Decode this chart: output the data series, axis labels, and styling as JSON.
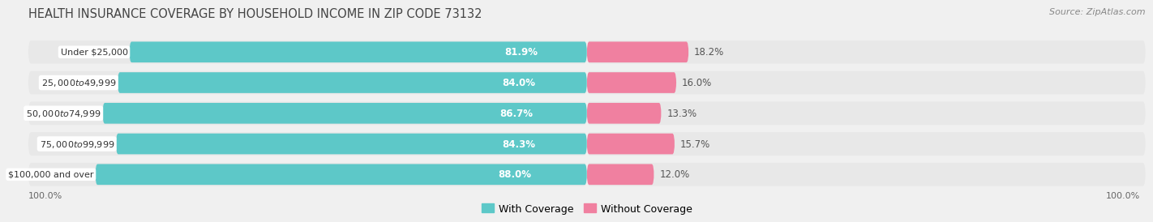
{
  "title": "HEALTH INSURANCE COVERAGE BY HOUSEHOLD INCOME IN ZIP CODE 73132",
  "source": "Source: ZipAtlas.com",
  "categories": [
    "Under $25,000",
    "$25,000 to $49,999",
    "$50,000 to $74,999",
    "$75,000 to $99,999",
    "$100,000 and over"
  ],
  "with_coverage": [
    81.9,
    84.0,
    86.7,
    84.3,
    88.0
  ],
  "without_coverage": [
    18.2,
    16.0,
    13.3,
    15.7,
    12.0
  ],
  "color_with": "#5DC8C8",
  "color_without": "#F080A0",
  "background_color": "#f0f0f0",
  "bar_background": "#e8e8e8",
  "title_fontsize": 10.5,
  "source_fontsize": 8,
  "label_fontsize": 8.5,
  "legend_fontsize": 9,
  "axis_label_fontsize": 8,
  "bar_height": 0.68,
  "figsize": [
    14.06,
    2.69
  ],
  "dpi": 100,
  "left_axis_label": "100.0%",
  "right_axis_label": "100.0%"
}
